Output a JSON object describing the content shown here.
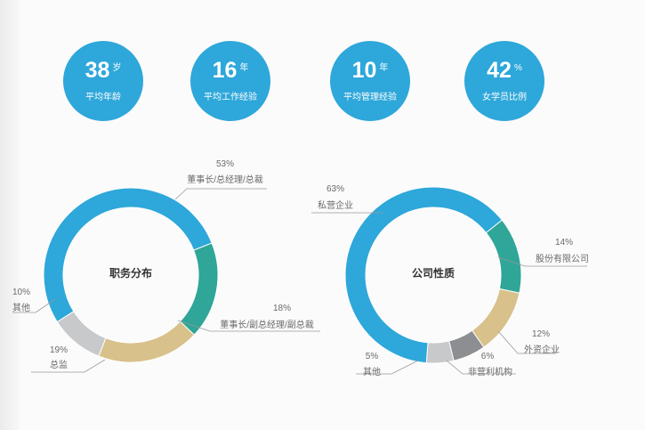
{
  "stats": [
    {
      "value": "38",
      "unit": "岁",
      "label": "平均年龄"
    },
    {
      "value": "16",
      "unit": "年",
      "label": "平均工作经验"
    },
    {
      "value": "10",
      "unit": "年",
      "label": "平均管理经验"
    },
    {
      "value": "42",
      "unit": "%",
      "label": "女学员比例"
    }
  ],
  "colors": {
    "stat_circle": "#2ea7da",
    "blue": "#2ea7da",
    "teal": "#2fa697",
    "tan": "#d8c18b",
    "light_gray": "#c8c9cb",
    "dark_gray": "#8c8e91"
  },
  "chart_data": [
    {
      "type": "pie",
      "title": "职务分布",
      "slices": [
        {
          "label": "董事长/总经理/总裁",
          "value": 53,
          "value_label": "53%",
          "color": "#2ea7da"
        },
        {
          "label": "董事长/副总经理/副总裁",
          "value": 18,
          "value_label": "18%",
          "color": "#2fa697"
        },
        {
          "label": "总监",
          "value": 19,
          "value_label": "19%",
          "color": "#d8c18b"
        },
        {
          "label": "其他",
          "value": 10,
          "value_label": "10%",
          "color": "#c8c9cb"
        }
      ]
    },
    {
      "type": "pie",
      "title": "公司性质",
      "slices": [
        {
          "label": "私营企业",
          "value": 63,
          "value_label": "63%",
          "color": "#2ea7da"
        },
        {
          "label": "股份有限公司",
          "value": 14,
          "value_label": "14%",
          "color": "#2fa697"
        },
        {
          "label": "外资企业",
          "value": 12,
          "value_label": "12%",
          "color": "#d8c18b"
        },
        {
          "label": "非营利机构",
          "value": 6,
          "value_label": "6%",
          "color": "#8c8e91"
        },
        {
          "label": "其他",
          "value": 5,
          "value_label": "5%",
          "color": "#c8c9cb"
        }
      ]
    }
  ]
}
